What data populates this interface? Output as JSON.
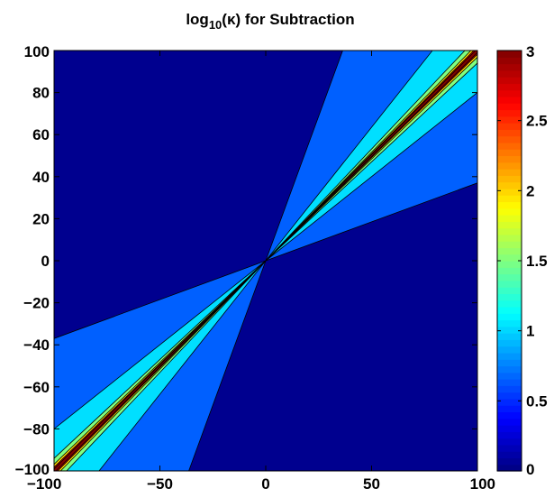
{
  "chart_data": {
    "type": "contourf",
    "title": {
      "prefix": "log",
      "subscript": "10",
      "suffix": "(κ) for Subtraction"
    },
    "xlim": [
      -100,
      100
    ],
    "ylim": [
      -100,
      100
    ],
    "xticks": [
      "−100",
      "−50",
      "0",
      "50",
      "100"
    ],
    "xtick_values": [
      -100,
      -50,
      0,
      50,
      100
    ],
    "yticks": [
      "100",
      "80",
      "60",
      "40",
      "20",
      "0",
      "−20",
      "−40",
      "−60",
      "−80",
      "−100"
    ],
    "ytick_values": [
      100,
      80,
      60,
      40,
      20,
      0,
      -20,
      -40,
      -60,
      -80,
      -100
    ],
    "colorbar": {
      "range": [
        0,
        3
      ],
      "ticks": [
        "3",
        "2.5",
        "2",
        "1.5",
        "1",
        "0.5",
        "0"
      ],
      "tick_values": [
        3,
        2.5,
        2,
        1.5,
        1,
        0.5,
        0
      ],
      "colormap": "jet"
    },
    "levels": [
      {
        "level": 0,
        "color": "#00008f",
        "slope_low": 0,
        "slope_high": 0
      },
      {
        "level": 0.5,
        "color": "#0060ff",
        "slope_low": 0.37,
        "slope_high": 2.75
      },
      {
        "level": 1,
        "color": "#00dfff",
        "slope_low": 0.8,
        "slope_high": 1.27
      },
      {
        "level": 1.5,
        "color": "#80ff80",
        "slope_low": 0.94,
        "slope_high": 1.063
      },
      {
        "level": 2,
        "color": "#ffdf00",
        "slope_low": 0.968,
        "slope_high": 1.032
      },
      {
        "level": 2.5,
        "color": "#ef0000",
        "slope_low": 0.982,
        "slope_high": 1.018
      },
      {
        "level": 3,
        "color": "#800000",
        "slope_low": 0.99,
        "slope_high": 1.01
      }
    ]
  }
}
